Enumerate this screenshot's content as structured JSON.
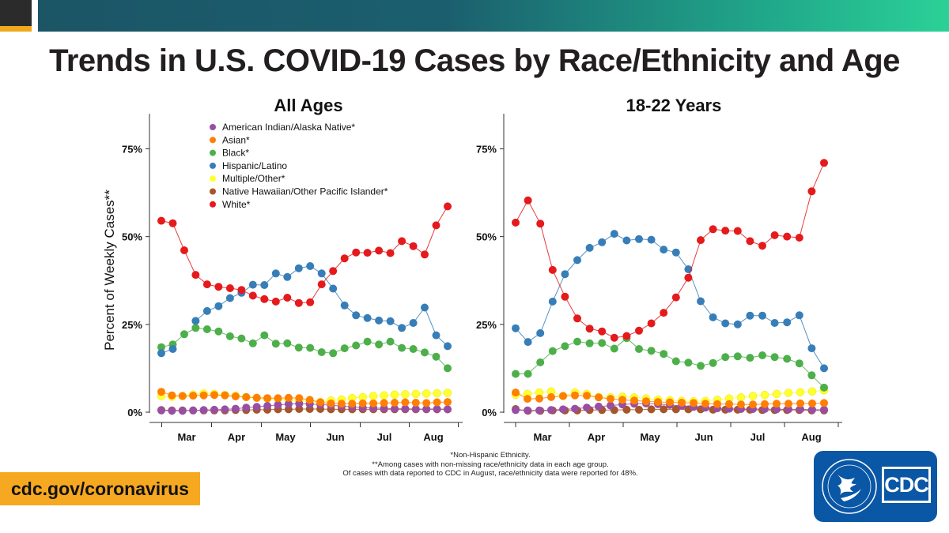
{
  "page_title": "Trends in U.S. COVID-19 Cases by Race/Ethnicity and Age",
  "colors": {
    "American Indian/Alaska Native*": "#984ea3",
    "Asian*": "#ff7f00",
    "Black*": "#4daf4a",
    "Hispanic/Latino": "#377eb8",
    "Multiple/Other*": "#ffff33",
    "Native Hawaiian/Other Pacific Islander*": "#a65628",
    "White*": "#e41a1c"
  },
  "ylabel": "Percent of Weekly Cases**",
  "chart_data": [
    {
      "type": "line",
      "title": "All Ages",
      "x_ticks": [
        "Mar",
        "Apr",
        "May",
        "Jun",
        "Jul",
        "Aug"
      ],
      "ylim": [
        0,
        85
      ],
      "y_ticks": [
        "0%",
        "25%",
        "50%",
        "75%"
      ],
      "y_tick_values": [
        0,
        25,
        50,
        75
      ],
      "grid": false,
      "legend": "top-center",
      "series": [
        {
          "name": "American Indian/Alaska Native*",
          "values": [
            0.5,
            0.4,
            0.4,
            0.5,
            0.6,
            0.7,
            0.8,
            1.0,
            1.3,
            1.5,
            1.8,
            2.1,
            2.3,
            2.4,
            2.3,
            2.2,
            2.0,
            1.7,
            1.5,
            1.3,
            1.2,
            1.1,
            1.0,
            1.0,
            0.9,
            0.9,
            0.9,
            0.8
          ]
        },
        {
          "name": "Asian*",
          "values": [
            5.8,
            4.8,
            4.6,
            4.7,
            4.8,
            4.9,
            4.8,
            4.5,
            4.3,
            4.1,
            4.0,
            4.0,
            4.1,
            4.0,
            3.5,
            2.8,
            2.5,
            2.4,
            2.4,
            2.5,
            2.5,
            2.6,
            2.7,
            2.8,
            2.7,
            2.6,
            2.8,
            2.9
          ]
        },
        {
          "name": "Black*",
          "values": [
            18.5,
            19.3,
            22.2,
            24.0,
            23.6,
            23.0,
            21.6,
            21.0,
            19.6,
            21.9,
            19.5,
            19.6,
            18.4,
            18.3,
            17.1,
            16.8,
            18.2,
            19.0,
            20.1,
            19.3,
            20.1,
            18.3,
            18.0,
            17.0,
            15.8,
            12.5
          ]
        },
        {
          "name": "Hispanic/Latino",
          "values": [
            16.8,
            18.0,
            null,
            26.0,
            28.8,
            30.2,
            32.5,
            34.0,
            36.3,
            36.2,
            39.5,
            38.5,
            41.0,
            41.6,
            39.5,
            35.2,
            30.4,
            27.6,
            26.8,
            26.1,
            25.9,
            24.0,
            25.4,
            29.8,
            21.9,
            18.8
          ]
        },
        {
          "name": "Multiple/Other*",
          "values": [
            4.6,
            4.4,
            4.6,
            5.0,
            5.3,
            5.2,
            4.9,
            4.7,
            4.3,
            4.1,
            3.9,
            3.7,
            3.5,
            3.3,
            3.0,
            2.9,
            3.3,
            3.6,
            4.0,
            4.3,
            4.6,
            4.8,
            5.0,
            5.1,
            5.2,
            5.3,
            5.4,
            5.5
          ]
        },
        {
          "name": "Native Hawaiian/Other Pacific Islander*",
          "values": [
            0.6,
            0.5,
            0.5,
            0.5,
            0.5,
            0.5,
            0.5,
            0.6,
            0.6,
            0.7,
            0.7,
            0.8,
            0.8,
            0.9,
            0.9,
            0.9,
            0.8,
            0.8,
            0.8,
            0.8,
            0.8,
            0.8,
            0.8,
            0.8,
            0.8,
            0.8,
            0.8,
            0.8
          ]
        },
        {
          "name": "White*",
          "values": [
            54.5,
            53.8,
            46.1,
            39.1,
            36.4,
            35.7,
            35.3,
            34.8,
            33.2,
            32.2,
            31.5,
            32.6,
            31.1,
            31.3,
            36.4,
            40.2,
            43.8,
            45.5,
            45.4,
            46.0,
            45.3,
            48.7,
            47.3,
            44.9,
            53.2,
            58.6
          ]
        }
      ]
    },
    {
      "type": "line",
      "title": "18-22 Years",
      "x_ticks": [
        "Mar",
        "Apr",
        "May",
        "Jun",
        "Jul",
        "Aug"
      ],
      "ylim": [
        0,
        85
      ],
      "y_ticks": [
        "0%",
        "25%",
        "50%",
        "75%"
      ],
      "y_tick_values": [
        0,
        25,
        50,
        75
      ],
      "grid": false,
      "legend": "none",
      "series": [
        {
          "name": "American Indian/Alaska Native*",
          "values": [
            0.6,
            0.5,
            0.5,
            0.6,
            0.8,
            1.0,
            1.3,
            1.6,
            1.9,
            2.2,
            2.4,
            2.5,
            2.3,
            2.1,
            1.8,
            1.5,
            1.3,
            1.1,
            1.0,
            0.9,
            0.9,
            0.9,
            0.8,
            0.8,
            0.8,
            0.7,
            0.7
          ]
        },
        {
          "name": "Asian*",
          "values": [
            5.6,
            3.8,
            3.9,
            4.3,
            4.6,
            4.8,
            4.7,
            4.2,
            3.8,
            3.5,
            3.3,
            3.1,
            2.9,
            2.8,
            2.7,
            2.6,
            2.4,
            2.3,
            2.3,
            2.2,
            2.2,
            2.3,
            2.4,
            2.4,
            2.5,
            2.5,
            2.6
          ]
        },
        {
          "name": "Black*",
          "values": [
            10.9,
            10.9,
            14.2,
            17.4,
            18.8,
            20.1,
            19.6,
            19.7,
            18.1,
            21.1,
            18.0,
            17.5,
            16.6,
            14.5,
            14.1,
            13.2,
            14.0,
            15.7,
            15.9,
            15.5,
            16.2,
            15.7,
            15.2,
            13.9,
            10.5,
            7.0
          ]
        },
        {
          "name": "Hispanic/Latino",
          "values": [
            23.9,
            20.0,
            22.5,
            31.5,
            39.3,
            43.3,
            46.8,
            48.4,
            50.8,
            48.9,
            49.3,
            49.1,
            46.3,
            45.5,
            40.7,
            31.6,
            27.0,
            25.3,
            25.0,
            27.5,
            27.5,
            25.4,
            25.6,
            27.6,
            18.2,
            12.5
          ]
        },
        {
          "name": "Multiple/Other*",
          "values": [
            5.0,
            5.2,
            5.6,
            5.9,
            4.6,
            5.6,
            5.2,
            4.3,
            4.2,
            4.4,
            4.2,
            3.9,
            3.6,
            3.4,
            3.2,
            3.1,
            3.2,
            3.5,
            3.9,
            4.2,
            4.6,
            4.9,
            5.2,
            5.5,
            5.7,
            5.9,
            6.2
          ]
        },
        {
          "name": "Native Hawaiian/Other Pacific Islander*",
          "values": [
            0.9,
            0.4,
            0.4,
            0.5,
            0.5,
            0.5,
            0.6,
            0.6,
            0.6,
            0.7,
            0.7,
            0.8,
            0.8,
            0.8,
            0.8,
            0.8,
            0.7,
            0.7,
            0.7,
            0.7,
            0.6,
            0.6,
            0.6,
            0.6,
            0.5,
            0.5
          ]
        },
        {
          "name": "White*",
          "values": [
            54.0,
            60.3,
            53.7,
            40.5,
            32.9,
            26.7,
            23.8,
            23.0,
            21.2,
            21.7,
            23.2,
            25.3,
            28.3,
            32.7,
            38.3,
            49.0,
            52.1,
            51.7,
            51.6,
            48.7,
            47.4,
            50.4,
            50.0,
            49.7,
            62.9,
            71.0
          ]
        }
      ]
    }
  ],
  "footnotes": [
    "*Non-Hispanic Ethnicity.",
    "**Among cases with non-missing race/ethnicity data in each age group.",
    "Of cases with data reported to CDC in August, race/ethnicity data were reported for 48%."
  ],
  "url_text": "cdc.gov/coronavirus",
  "logo": {
    "text": "CDC",
    "icons": [
      "hhs-eagle-icon"
    ]
  }
}
